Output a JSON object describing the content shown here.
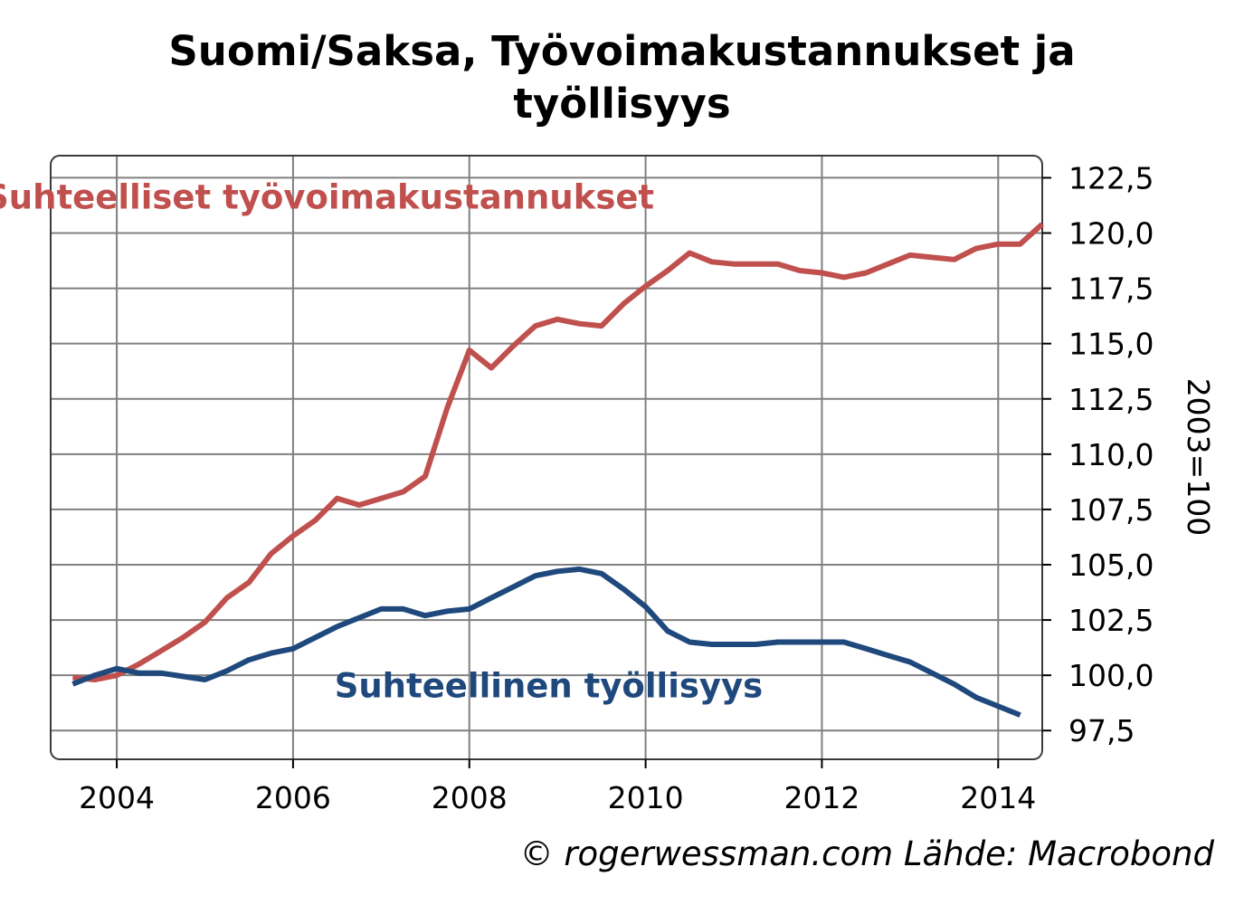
{
  "chart_data": {
    "type": "line",
    "title_lines": [
      "Suomi/Saksa, Työvoimakustannukset ja",
      "työllisyys"
    ],
    "ylabel": "2003=100",
    "ylim": [
      96.2,
      123.5
    ],
    "yticks": [
      97.5,
      100.0,
      102.5,
      105.0,
      107.5,
      110.0,
      112.5,
      115.0,
      117.5,
      120.0,
      122.5
    ],
    "ytick_labels": [
      "97,5",
      "100,0",
      "102,5",
      "105,0",
      "107,5",
      "110,0",
      "112,5",
      "115,0",
      "117,5",
      "120,0",
      "122,5"
    ],
    "xlim": [
      2003.25,
      2014.5
    ],
    "xticks": [
      2004,
      2006,
      2008,
      2010,
      2012,
      2014
    ],
    "xtick_labels": [
      "2004",
      "2006",
      "2008",
      "2010",
      "2012",
      "2014"
    ],
    "grid": true,
    "y_axis_side": "right",
    "series": [
      {
        "name": "Suhteelliset työvoimakustannukset",
        "color": "#c0504d",
        "label_pos": [
          2006.3,
          121.1
        ],
        "x": [
          2003.5,
          2003.75,
          2004.0,
          2004.25,
          2004.5,
          2004.75,
          2005.0,
          2005.25,
          2005.5,
          2005.75,
          2006.0,
          2006.25,
          2006.5,
          2006.75,
          2007.0,
          2007.25,
          2007.5,
          2007.75,
          2008.0,
          2008.25,
          2008.5,
          2008.75,
          2009.0,
          2009.25,
          2009.5,
          2009.75,
          2010.0,
          2010.25,
          2010.5,
          2010.75,
          2011.0,
          2011.25,
          2011.5,
          2011.75,
          2012.0,
          2012.25,
          2012.5,
          2012.75,
          2013.0,
          2013.25,
          2013.5,
          2013.75,
          2014.0,
          2014.25,
          2014.5
        ],
        "values": [
          99.9,
          99.8,
          100.0,
          100.5,
          101.1,
          101.7,
          102.4,
          103.5,
          104.2,
          105.5,
          106.3,
          107.0,
          108.0,
          107.7,
          108.0,
          108.3,
          109.0,
          112.1,
          114.7,
          113.9,
          114.9,
          115.8,
          116.1,
          115.9,
          115.8,
          116.8,
          117.6,
          118.3,
          119.1,
          118.7,
          118.6,
          118.6,
          118.6,
          118.3,
          118.2,
          118.0,
          118.2,
          118.6,
          119.0,
          118.9,
          118.8,
          119.3,
          119.5,
          119.5,
          120.4
        ]
      },
      {
        "name": "Suhteellinen työllisyys",
        "color": "#1f497d",
        "label_pos": [
          2008.9,
          99.0
        ],
        "x": [
          2003.5,
          2003.75,
          2004.0,
          2004.25,
          2004.5,
          2004.75,
          2005.0,
          2005.25,
          2005.5,
          2005.75,
          2006.0,
          2006.25,
          2006.5,
          2006.75,
          2007.0,
          2007.25,
          2007.5,
          2007.75,
          2008.0,
          2008.25,
          2008.5,
          2008.75,
          2009.0,
          2009.25,
          2009.5,
          2009.75,
          2010.0,
          2010.25,
          2010.5,
          2010.75,
          2011.0,
          2011.25,
          2011.5,
          2011.75,
          2012.0,
          2012.25,
          2012.5,
          2012.75,
          2013.0,
          2013.25,
          2013.5,
          2013.75,
          2014.0,
          2014.25
        ],
        "values": [
          99.6,
          100.0,
          100.3,
          100.1,
          100.1,
          99.95,
          99.8,
          100.2,
          100.7,
          101.0,
          101.2,
          101.7,
          102.2,
          102.6,
          103.0,
          103.0,
          102.7,
          102.9,
          103.0,
          103.5,
          104.0,
          104.5,
          104.7,
          104.8,
          104.6,
          103.9,
          103.1,
          102.0,
          101.5,
          101.4,
          101.4,
          101.4,
          101.5,
          101.5,
          101.5,
          101.5,
          101.2,
          100.9,
          100.6,
          100.1,
          99.6,
          99.0,
          98.6,
          98.2
        ]
      }
    ]
  },
  "source_note": "© rogerwessman.com Lähde: Macrobond"
}
